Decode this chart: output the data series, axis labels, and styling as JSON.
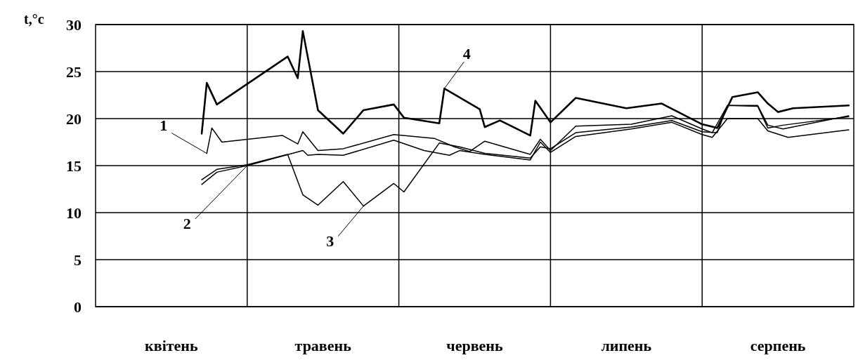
{
  "chart_data": {
    "type": "line",
    "ylabel": "t,°c",
    "ylim": [
      0,
      30
    ],
    "yticks": [
      0,
      5,
      10,
      15,
      20,
      25,
      30
    ],
    "categories": [
      null,
      null,
      null,
      null,
      null,
      null,
      null,
      null,
      null,
      null,
      null,
      null,
      null,
      null,
      null,
      "квітень",
      null,
      null,
      null,
      null,
      null,
      null,
      null,
      null,
      null,
      null,
      null,
      null,
      null,
      null,
      null,
      null,
      null,
      null,
      null,
      null,
      null,
      null,
      null,
      null,
      null,
      null,
      null,
      null,
      null,
      "травень",
      null,
      null,
      null,
      null,
      null,
      null,
      null,
      null,
      null,
      null,
      null,
      null,
      null,
      null,
      null,
      null,
      null,
      null,
      null,
      null,
      null,
      null,
      null,
      null,
      null,
      null,
      null,
      null,
      null,
      "червень",
      null,
      null,
      null,
      null,
      null,
      null,
      null,
      null,
      null,
      null,
      null,
      null,
      null,
      null,
      null,
      null,
      null,
      null,
      null,
      null,
      null,
      null,
      null,
      null,
      null,
      null,
      null,
      null,
      null,
      "липень",
      null,
      null,
      null,
      null,
      null,
      null,
      null,
      null,
      null,
      null,
      null,
      null,
      null,
      null,
      null,
      null,
      null,
      null,
      null,
      null,
      null,
      null,
      null,
      null,
      null,
      null,
      null,
      null,
      null,
      "серпень",
      null,
      null,
      null,
      null,
      null,
      null,
      null,
      null,
      null,
      null,
      null,
      null,
      null,
      null
    ],
    "grid": true,
    "legend": false,
    "marker": "none",
    "line_style": "solid",
    "series": [
      {
        "name": "1",
        "color": "#000000",
        "values": [
          null,
          null,
          null,
          null,
          null,
          null,
          null,
          null,
          null,
          null,
          null,
          null,
          null,
          null,
          null,
          null,
          null,
          null,
          null,
          null,
          null,
          null,
          16.3,
          19.0,
          null,
          17.5,
          null,
          null,
          null,
          null,
          null,
          null,
          null,
          null,
          null,
          null,
          null,
          18.2,
          null,
          null,
          17.3,
          18.6,
          null,
          null,
          16.6,
          null,
          null,
          null,
          null,
          16.8,
          null,
          null,
          null,
          null,
          null,
          null,
          null,
          null,
          null,
          18.3,
          null,
          null,
          null,
          null,
          null,
          null,
          null,
          17.9,
          null,
          null,
          null,
          17.0,
          null,
          null,
          16.5,
          null,
          null,
          17.6,
          null,
          null,
          null,
          null,
          null,
          null,
          null,
          null,
          16.2,
          null,
          17.8,
          null,
          16.6,
          null,
          null,
          null,
          null,
          19.2,
          null,
          null,
          null,
          null,
          null,
          null,
          null,
          null,
          null,
          null,
          19.4,
          null,
          null,
          null,
          null,
          null,
          null,
          null,
          20.3,
          null,
          null,
          null,
          null,
          null,
          18.9,
          null,
          18.5,
          null,
          null,
          21.4,
          null,
          null,
          null,
          null,
          null,
          21.4,
          null,
          19.3,
          null,
          null,
          18.9,
          null,
          null,
          null,
          null,
          null,
          null,
          null,
          null,
          null,
          null,
          null,
          null,
          20.3
        ]
      },
      {
        "name": "2",
        "color": "#000000",
        "values": [
          null,
          null,
          null,
          null,
          null,
          null,
          null,
          null,
          null,
          null,
          null,
          null,
          null,
          null,
          null,
          null,
          null,
          null,
          null,
          null,
          null,
          13.0,
          null,
          null,
          14.3,
          null,
          null,
          null,
          null,
          null,
          15.0,
          null,
          null,
          null,
          null,
          null,
          null,
          null,
          null,
          null,
          null,
          16.6,
          16.1,
          null,
          16.2,
          null,
          null,
          null,
          null,
          16.1,
          null,
          null,
          null,
          null,
          null,
          null,
          null,
          null,
          null,
          17.7,
          null,
          null,
          null,
          null,
          null,
          16.6,
          null,
          null,
          null,
          null,
          16.1,
          null,
          16.6,
          null,
          null,
          null,
          null,
          16.2,
          null,
          null,
          null,
          null,
          null,
          null,
          null,
          null,
          15.6,
          null,
          17.5,
          null,
          16.4,
          null,
          null,
          null,
          null,
          18.1,
          null,
          null,
          null,
          null,
          null,
          null,
          null,
          null,
          null,
          null,
          18.9,
          null,
          null,
          null,
          null,
          null,
          null,
          null,
          19.6,
          null,
          null,
          null,
          null,
          null,
          18.3,
          null,
          18.0,
          null,
          null,
          20.0,
          null,
          null,
          null,
          null,
          null,
          20.0,
          null,
          18.7,
          null,
          null,
          null,
          18.0,
          null,
          null,
          null,
          null,
          null,
          null,
          null,
          null,
          null,
          null,
          null,
          18.8
        ]
      },
      {
        "name": "3",
        "color": "#000000",
        "values": [
          null,
          null,
          null,
          null,
          null,
          null,
          null,
          null,
          null,
          null,
          null,
          null,
          null,
          null,
          null,
          null,
          null,
          null,
          null,
          null,
          null,
          13.5,
          null,
          null,
          14.6,
          null,
          null,
          null,
          null,
          null,
          15.1,
          null,
          null,
          null,
          null,
          null,
          null,
          null,
          16.2,
          null,
          null,
          11.9,
          null,
          null,
          10.8,
          null,
          null,
          null,
          null,
          13.3,
          null,
          null,
          null,
          10.7,
          null,
          null,
          null,
          null,
          null,
          13.1,
          null,
          12.2,
          null,
          null,
          null,
          null,
          null,
          null,
          17.4,
          null,
          null,
          null,
          17.0,
          null,
          null,
          null,
          null,
          16.3,
          null,
          null,
          null,
          null,
          null,
          null,
          null,
          null,
          15.8,
          null,
          17.0,
          null,
          16.8,
          null,
          null,
          null,
          null,
          18.5,
          null,
          null,
          null,
          null,
          null,
          null,
          null,
          null,
          null,
          null,
          19.1,
          null,
          null,
          null,
          null,
          null,
          null,
          null,
          19.8,
          null,
          null,
          null,
          null,
          null,
          18.6,
          null,
          null,
          18.5,
          null,
          21.4,
          null,
          null,
          null,
          null,
          null,
          21.3,
          null,
          19.0,
          null,
          null,
          19.3,
          null,
          null,
          null,
          null,
          null,
          null,
          null,
          null,
          null,
          null,
          null,
          null,
          20.2
        ]
      },
      {
        "name": "4",
        "color": "#000000",
        "values": [
          null,
          null,
          null,
          null,
          null,
          null,
          null,
          null,
          null,
          null,
          null,
          null,
          null,
          null,
          null,
          null,
          null,
          null,
          null,
          null,
          null,
          18.4,
          23.8,
          null,
          21.5,
          null,
          null,
          null,
          null,
          null,
          null,
          null,
          null,
          null,
          null,
          null,
          null,
          null,
          26.6,
          null,
          24.3,
          29.3,
          null,
          null,
          20.9,
          null,
          null,
          null,
          null,
          18.4,
          null,
          null,
          null,
          20.9,
          null,
          null,
          null,
          null,
          null,
          21.5,
          null,
          20.1,
          null,
          null,
          null,
          null,
          null,
          null,
          19.5,
          23.2,
          null,
          null,
          null,
          null,
          null,
          null,
          21.0,
          19.1,
          null,
          null,
          19.8,
          null,
          null,
          null,
          null,
          null,
          18.2,
          21.9,
          null,
          null,
          19.6,
          null,
          null,
          null,
          null,
          22.2,
          null,
          null,
          null,
          null,
          null,
          null,
          null,
          null,
          null,
          21.1,
          null,
          null,
          null,
          null,
          null,
          null,
          21.6,
          null,
          null,
          null,
          null,
          null,
          null,
          null,
          19.4,
          null,
          null,
          19.0,
          null,
          null,
          22.3,
          null,
          null,
          null,
          null,
          22.8,
          null,
          21.6,
          null,
          20.7,
          null,
          null,
          21.1,
          null,
          null,
          null,
          null,
          null,
          null,
          null,
          null,
          null,
          null,
          21.4
        ]
      }
    ]
  }
}
